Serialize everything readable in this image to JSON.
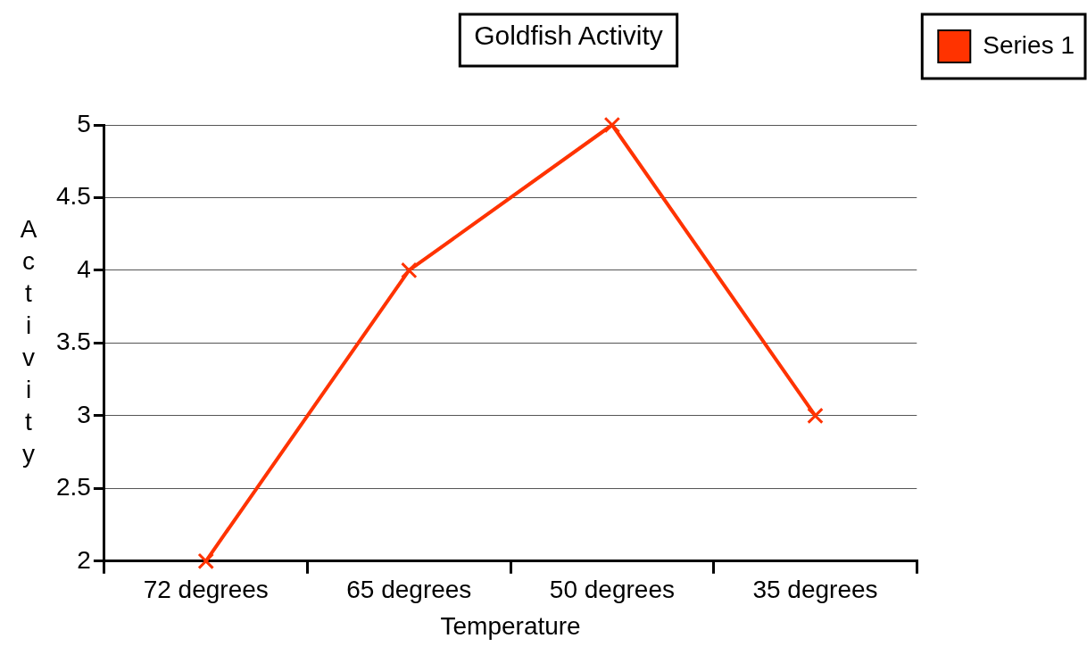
{
  "chart_data": {
    "type": "line",
    "title": "Goldfish Activity",
    "xlabel": "Temperature",
    "ylabel": "Activity",
    "categories": [
      "72 degrees",
      "65 degrees",
      "50 degrees",
      "35 degrees"
    ],
    "series": [
      {
        "name": "Series 1",
        "color": "#ff3300",
        "values": [
          2,
          4,
          5,
          3
        ]
      }
    ],
    "ylim": [
      2,
      5
    ],
    "yticks": [
      2,
      2.5,
      3,
      3.5,
      4,
      4.5,
      5
    ],
    "grid": "y",
    "legend": "top right",
    "marker": "cross",
    "line_style": "solid"
  }
}
